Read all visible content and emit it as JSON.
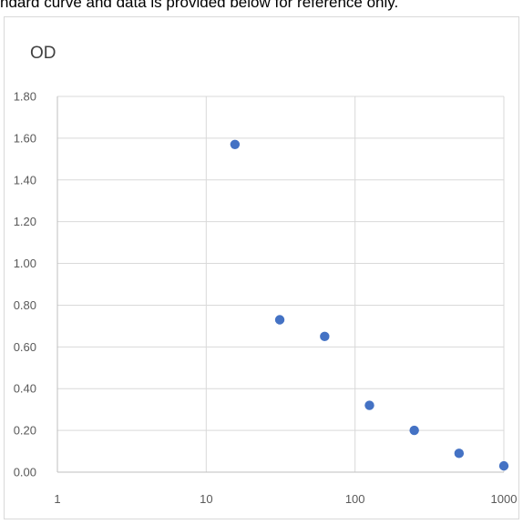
{
  "caption": "ndard curve and data is provided below for reference only.",
  "chart_data": {
    "type": "scatter",
    "title": "",
    "xlabel": "",
    "ylabel": "OD",
    "x_scale": "log",
    "xlim": [
      1,
      1000
    ],
    "ylim": [
      0,
      1.8
    ],
    "x_ticks": [
      "1",
      "10",
      "100",
      "1000"
    ],
    "y_ticks": [
      "0.00",
      "0.20",
      "0.40",
      "0.60",
      "0.80",
      "1.00",
      "1.20",
      "1.40",
      "1.60",
      "1.80"
    ],
    "grid": true,
    "legend": "none",
    "series": [
      {
        "color": "#4472c4",
        "points": [
          {
            "x": 15.6,
            "y": 1.57
          },
          {
            "x": 31.2,
            "y": 0.73
          },
          {
            "x": 62.5,
            "y": 0.65
          },
          {
            "x": 125,
            "y": 0.32
          },
          {
            "x": 250,
            "y": 0.2
          },
          {
            "x": 500,
            "y": 0.09
          },
          {
            "x": 1000,
            "y": 0.03
          }
        ]
      }
    ]
  }
}
